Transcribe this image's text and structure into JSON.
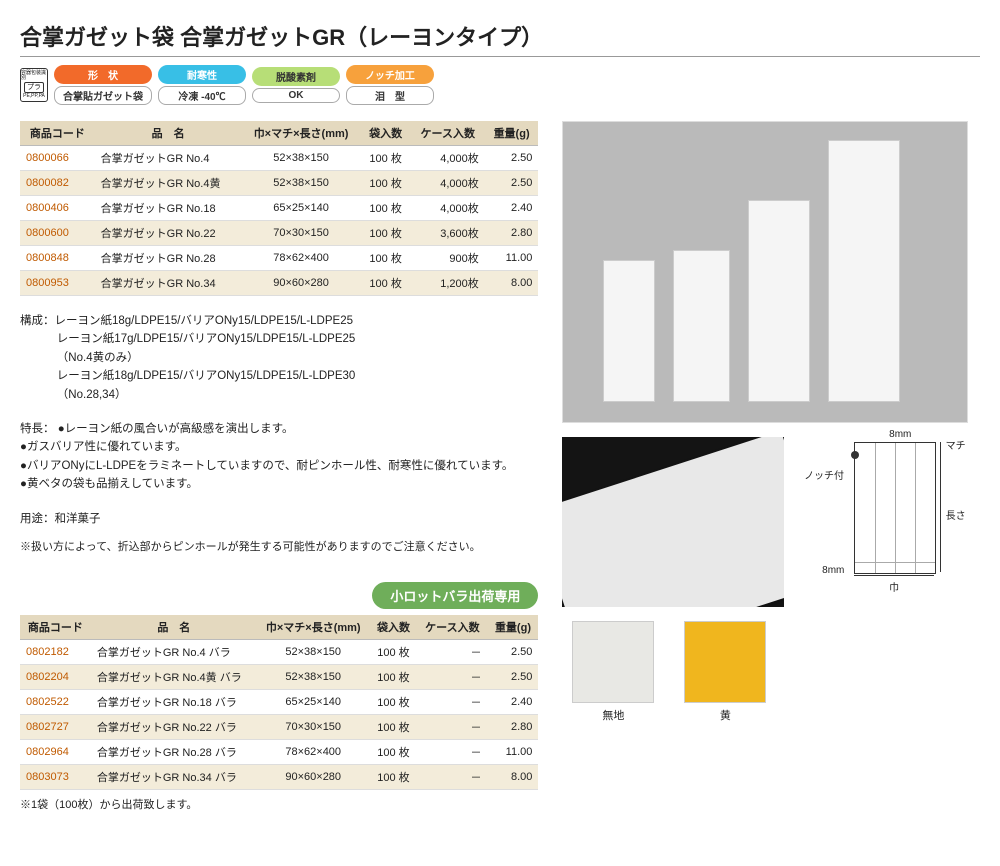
{
  "title": "合掌ガゼット袋 合掌ガゼットGR（レーヨンタイプ）",
  "badges": {
    "shape": {
      "label": "形　状",
      "sub": "合掌貼ガゼット袋",
      "color": "#f26a2a"
    },
    "cold": {
      "label": "耐寒性",
      "sub": "冷凍 -40℃",
      "color": "#38bfe6"
    },
    "deox": {
      "label": "脱酸素剤",
      "sub": "OK",
      "color": "#b7de77"
    },
    "notch": {
      "label": "ノッチ加工",
      "sub": "泪　型",
      "color": "#f7a13c"
    }
  },
  "tableHeaders": {
    "code": "商品コード",
    "name": "品　名",
    "size": "巾×マチ×長さ(mm)",
    "bag": "袋入数",
    "case": "ケース入数",
    "weight": "重量(g)"
  },
  "rows1": [
    {
      "code": "0800066",
      "name": "合掌ガゼットGR No.4",
      "size": "52×38×150",
      "bag": "100 枚",
      "case": "4,000枚",
      "weight": "2.50"
    },
    {
      "code": "0800082",
      "name": "合掌ガゼットGR No.4黄",
      "size": "52×38×150",
      "bag": "100 枚",
      "case": "4,000枚",
      "weight": "2.50"
    },
    {
      "code": "0800406",
      "name": "合掌ガゼットGR No.18",
      "size": "65×25×140",
      "bag": "100 枚",
      "case": "4,000枚",
      "weight": "2.40"
    },
    {
      "code": "0800600",
      "name": "合掌ガゼットGR No.22",
      "size": "70×30×150",
      "bag": "100 枚",
      "case": "3,600枚",
      "weight": "2.80"
    },
    {
      "code": "0800848",
      "name": "合掌ガゼットGR No.28",
      "size": "78×62×400",
      "bag": "100 枚",
      "case": "900枚",
      "weight": "11.00"
    },
    {
      "code": "0800953",
      "name": "合掌ガゼットGR No.34",
      "size": "90×60×280",
      "bag": "100 枚",
      "case": "1,200枚",
      "weight": "8.00"
    }
  ],
  "compose_label": "構成：",
  "compose": [
    "レーヨン紙18g/LDPE15/バリアONy15/LDPE15/L-LDPE25",
    "レーヨン紙17g/LDPE15/バリアONy15/LDPE15/L-LDPE25",
    "（No.4黄のみ）",
    "レーヨン紙18g/LDPE15/バリアONy15/LDPE15/L-LDPE30",
    "（No.28,34）"
  ],
  "feature_label": "特長：",
  "features": [
    "レーヨン紙の風合いが高級感を演出します。",
    "ガスバリア性に優れています。",
    "バリアONyにL-LDPEをラミネートしていますので、耐ピンホール性、耐寒性に優れています。",
    "黄ベタの袋も品揃えしています。"
  ],
  "use_label": "用途：",
  "use": "和洋菓子",
  "warn": "※扱い方によって、折込部からピンホールが発生する可能性がありますのでご注意ください。",
  "lotBadge": "小ロットバラ出荷専用",
  "rows2": [
    {
      "code": "0802182",
      "name": "合掌ガゼットGR No.4 バラ",
      "size": "52×38×150",
      "bag": "100 枚",
      "case": "－",
      "weight": "2.50"
    },
    {
      "code": "0802204",
      "name": "合掌ガゼットGR No.4黄 バラ",
      "size": "52×38×150",
      "bag": "100 枚",
      "case": "－",
      "weight": "2.50"
    },
    {
      "code": "0802522",
      "name": "合掌ガゼットGR No.18 バラ",
      "size": "65×25×140",
      "bag": "100 枚",
      "case": "－",
      "weight": "2.40"
    },
    {
      "code": "0802727",
      "name": "合掌ガゼットGR No.22 バラ",
      "size": "70×30×150",
      "bag": "100 枚",
      "case": "－",
      "weight": "2.80"
    },
    {
      "code": "0802964",
      "name": "合掌ガゼットGR No.28 バラ",
      "size": "78×62×400",
      "bag": "100 枚",
      "case": "－",
      "weight": "11.00"
    },
    {
      "code": "0803073",
      "name": "合掌ガゼットGR No.34 バラ",
      "size": "90×60×280",
      "bag": "100 枚",
      "case": "－",
      "weight": "8.00"
    }
  ],
  "footnote": "※1袋（100枚）から出荷致します。",
  "diagram": {
    "notch": "ノッチ付",
    "machi": "マチ",
    "nagasa": "長さ",
    "haba": "巾",
    "mm8a": "8mm",
    "mm8b": "8mm"
  },
  "swatches": {
    "plain": {
      "label": "無地",
      "color": "#e8e8e4"
    },
    "yellow": {
      "label": "黄",
      "color": "#f0b61e"
    }
  }
}
